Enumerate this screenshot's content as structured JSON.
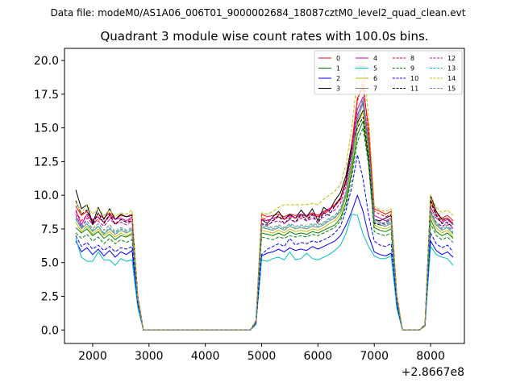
{
  "suptitle": "Data file: modeM0/AS1A06_006T01_9000002684_18087cztM0_level2_quad_clean.evt",
  "chart_data": {
    "type": "line",
    "title": "Quadrant 3 module wise count rates with 100.0s bins.",
    "xlabel": "",
    "ylabel": "",
    "x_offset_label": "+2.8667e8",
    "xlim": [
      1500,
      8600
    ],
    "ylim": [
      -1.0,
      20.9
    ],
    "x_ticks": [
      2000,
      3000,
      4000,
      5000,
      6000,
      7000,
      8000
    ],
    "x_tick_labels": [
      "2000",
      "3000",
      "4000",
      "5000",
      "6000",
      "7000",
      "8000"
    ],
    "y_ticks": [
      0.0,
      2.5,
      5.0,
      7.5,
      10.0,
      12.5,
      15.0,
      17.5,
      20.0
    ],
    "y_tick_labels": [
      "0.0",
      "2.5",
      "5.0",
      "7.5",
      "10.0",
      "12.5",
      "15.0",
      "17.5",
      "20.0"
    ],
    "legend_position": "upper right",
    "x": [
      1700,
      1800,
      1900,
      2000,
      2100,
      2200,
      2300,
      2400,
      2500,
      2600,
      2700,
      2800,
      2900,
      3000,
      3100,
      3200,
      3300,
      3400,
      3500,
      3600,
      3700,
      3800,
      3900,
      4000,
      4100,
      4200,
      4300,
      4400,
      4500,
      4600,
      4700,
      4800,
      4900,
      5000,
      5100,
      5200,
      5300,
      5400,
      5500,
      5600,
      5700,
      5800,
      5900,
      6000,
      6100,
      6200,
      6300,
      6400,
      6500,
      6600,
      6700,
      6800,
      6900,
      7000,
      7100,
      7200,
      7300,
      7400,
      7500,
      7600,
      7700,
      7800,
      7900,
      8000,
      8100,
      8200,
      8300,
      8400
    ],
    "series": [
      {
        "name": "0",
        "color": "#ff0000",
        "dash": "solid",
        "values": [
          9.2,
          8.5,
          8.8,
          8.1,
          8.6,
          8.3,
          8.7,
          8.2,
          8.5,
          8.4,
          8.6,
          2.6,
          0,
          0,
          0,
          0,
          0,
          0,
          0,
          0,
          0,
          0,
          0,
          0,
          0,
          0,
          0,
          0,
          0,
          0,
          0,
          0,
          0.7,
          8.6,
          8.4,
          8.5,
          8.6,
          8.4,
          8.6,
          8.5,
          8.6,
          8.5,
          8.7,
          8.5,
          8.8,
          9,
          9.3,
          9.8,
          11.2,
          13.8,
          17.2,
          18,
          15,
          9,
          8.8,
          8.6,
          8.8,
          2.6,
          0,
          0,
          0,
          0,
          0.4,
          9.7,
          8.6,
          8.3,
          8.5,
          8.1
        ]
      },
      {
        "name": "1",
        "color": "#008000",
        "dash": "solid",
        "values": [
          7.6,
          7.2,
          7.5,
          7,
          7.3,
          6.8,
          7.1,
          6.7,
          7,
          6.9,
          7.1,
          2.2,
          0,
          0,
          0,
          0,
          0,
          0,
          0,
          0,
          0,
          0,
          0,
          0,
          0,
          0,
          0,
          0,
          0,
          0,
          0,
          0,
          0.6,
          7.2,
          7.1,
          7,
          7.2,
          7,
          7.3,
          7.1,
          7.2,
          7.1,
          7.3,
          7.2,
          7.4,
          7.6,
          7.8,
          8.3,
          9.5,
          11.8,
          14.5,
          15.5,
          12.5,
          7.6,
          7.4,
          7.3,
          7.5,
          2.2,
          0,
          0,
          0,
          0,
          0.3,
          8.2,
          7.3,
          7,
          7.2,
          6.8
        ]
      },
      {
        "name": "2",
        "color": "#0000ff",
        "dash": "solid",
        "values": [
          6.6,
          5.8,
          6.1,
          5.6,
          6,
          5.5,
          5.9,
          5.4,
          5.8,
          5.6,
          5.9,
          1.9,
          0,
          0,
          0,
          0,
          0,
          0,
          0,
          0,
          0,
          0,
          0,
          0,
          0,
          0,
          0,
          0,
          0,
          0,
          0,
          0,
          0.5,
          5.5,
          5.7,
          5.8,
          6,
          5.8,
          6.1,
          5.9,
          6,
          5.9,
          6.2,
          6,
          6.2,
          6.4,
          6.6,
          7,
          7.8,
          8.8,
          10,
          8.8,
          7,
          5.8,
          5.6,
          5.5,
          5.7,
          1.8,
          0,
          0,
          0,
          0,
          0.3,
          6.6,
          5.9,
          5.6,
          5.8,
          5.4
        ]
      },
      {
        "name": "3",
        "color": "#000000",
        "dash": "solid",
        "values": [
          10.4,
          9,
          9.3,
          7.9,
          9.1,
          8.2,
          9,
          8.2,
          8.6,
          8.4,
          8.5,
          2.5,
          0,
          0,
          0,
          0,
          0,
          0,
          0,
          0,
          0,
          0,
          0,
          0,
          0,
          0,
          0,
          0,
          0,
          0,
          0,
          0,
          0.6,
          8.2,
          7.9,
          8.4,
          8.8,
          8.2,
          8.6,
          8.3,
          8.9,
          8.4,
          9,
          8.1,
          9.1,
          8.8,
          9.6,
          10.2,
          11.5,
          13.8,
          15.4,
          16.3,
          13.2,
          8.2,
          8.1,
          8.3,
          8.5,
          2.4,
          0,
          0,
          0,
          0,
          0.3,
          10,
          8.8,
          8.2,
          8.3,
          7.9
        ]
      },
      {
        "name": "4",
        "color": "#bf00bf",
        "dash": "solid",
        "values": [
          8.9,
          7.8,
          8.6,
          8.2,
          8.4,
          8,
          8.5,
          8.2,
          8.3,
          8.1,
          8.4,
          2.4,
          0,
          0,
          0,
          0,
          0,
          0,
          0,
          0,
          0,
          0,
          0,
          0,
          0,
          0,
          0,
          0,
          0,
          0,
          0,
          0,
          0.6,
          8.2,
          8.1,
          8.3,
          8.4,
          8.2,
          8.5,
          8.3,
          8.6,
          8.4,
          8.6,
          8.4,
          8.7,
          9,
          9.2,
          9.7,
          11,
          13.5,
          16.4,
          17.3,
          14,
          8.5,
          8.3,
          8.1,
          8.3,
          2.4,
          0,
          0,
          0,
          0,
          0.4,
          9.1,
          8.3,
          8,
          8.2,
          7.8
        ]
      },
      {
        "name": "5",
        "color": "#00bfbf",
        "dash": "solid",
        "values": [
          6.8,
          5.4,
          5.1,
          5.1,
          5.8,
          5.2,
          5.2,
          4.8,
          5.3,
          5.1,
          5.2,
          1.7,
          0,
          0,
          0,
          0,
          0,
          0,
          0,
          0,
          0,
          0,
          0,
          0,
          0,
          0,
          0,
          0,
          0,
          0,
          0,
          0,
          0.4,
          5.2,
          5.1,
          5.3,
          5.4,
          5.2,
          5.8,
          5.2,
          5.3,
          5.7,
          5.3,
          5.2,
          5.4,
          5.6,
          5.9,
          6.3,
          7.2,
          8.6,
          8.5,
          7.1,
          6.2,
          5.5,
          5.3,
          5.3,
          5.5,
          1.6,
          0,
          0,
          0,
          0,
          0.3,
          6.2,
          5.6,
          5.4,
          5.3,
          4.8
        ]
      },
      {
        "name": "6",
        "color": "#bfbf00",
        "dash": "solid",
        "values": [
          8,
          7.3,
          7.7,
          7.1,
          7.5,
          7,
          7.3,
          6.9,
          7.2,
          7,
          7.2,
          2.2,
          0,
          0,
          0,
          0,
          0,
          0,
          0,
          0,
          0,
          0,
          0,
          0,
          0,
          0,
          0,
          0,
          0,
          0,
          0,
          0,
          0.6,
          7.4,
          7.3,
          7.2,
          7.4,
          7.2,
          7.5,
          7.3,
          7.4,
          7.3,
          7.5,
          7.4,
          7.6,
          7.9,
          8.1,
          8.6,
          9.9,
          12.2,
          15.2,
          16.2,
          13,
          7.8,
          7.6,
          7.5,
          7.7,
          2.2,
          0,
          0,
          0,
          0,
          0.3,
          8.5,
          7.6,
          7.2,
          7.4,
          6.9
        ]
      },
      {
        "name": "7",
        "color": "#808080",
        "dash": "solid",
        "values": [
          8.3,
          7.5,
          7.9,
          7.3,
          7.7,
          7.1,
          7.5,
          7.1,
          7.4,
          7.2,
          7.4,
          2.3,
          0,
          0,
          0,
          0,
          0,
          0,
          0,
          0,
          0,
          0,
          0,
          0,
          0,
          0,
          0,
          0,
          0,
          0,
          0,
          0,
          0.6,
          7.6,
          7.5,
          7.4,
          7.6,
          7.4,
          7.7,
          7.5,
          7.6,
          7.5,
          7.7,
          7.6,
          7.8,
          8.1,
          8.3,
          8.8,
          10.1,
          12.5,
          15.6,
          16.8,
          13.4,
          8,
          7.8,
          7.7,
          7.9,
          2.3,
          0,
          0,
          0,
          0,
          0.3,
          8.7,
          7.8,
          7.4,
          7.6,
          7.1
        ]
      },
      {
        "name": "8",
        "color": "#ff0000",
        "dash": "dashed",
        "values": [
          8.8,
          8.1,
          8.5,
          7.8,
          8.3,
          8,
          8.4,
          7.9,
          8.2,
          8,
          8.3,
          2.5,
          0,
          0,
          0,
          0,
          0,
          0,
          0,
          0,
          0,
          0,
          0,
          0,
          0,
          0,
          0,
          0,
          0,
          0,
          0,
          0,
          0.7,
          8.3,
          8.2,
          8.1,
          8.4,
          8.2,
          8.4,
          8.3,
          8.4,
          8.3,
          8.5,
          8.4,
          8.6,
          8.9,
          9.2,
          9.7,
          11,
          13.6,
          17,
          18.5,
          14.5,
          8.8,
          8.6,
          8.4,
          8.6,
          2.5,
          0,
          0,
          0,
          0,
          0.4,
          9.4,
          8.5,
          8.1,
          8.3,
          7.9
        ]
      },
      {
        "name": "9",
        "color": "#008000",
        "dash": "dashed",
        "values": [
          7.2,
          6.8,
          7.1,
          6.6,
          6.9,
          6.4,
          6.8,
          6.4,
          6.7,
          6.5,
          6.7,
          2.1,
          0,
          0,
          0,
          0,
          0,
          0,
          0,
          0,
          0,
          0,
          0,
          0,
          0,
          0,
          0,
          0,
          0,
          0,
          0,
          0,
          0.5,
          6.9,
          6.8,
          6.7,
          6.9,
          6.8,
          7,
          6.9,
          7,
          6.9,
          7.1,
          7,
          7.2,
          7.4,
          7.6,
          8.1,
          9.2,
          11.4,
          14,
          15,
          12.2,
          7.3,
          7.1,
          7,
          7.2,
          2.1,
          0,
          0,
          0,
          0,
          0.3,
          7.9,
          7,
          6.7,
          6.9,
          6.5
        ]
      },
      {
        "name": "10",
        "color": "#0000ff",
        "dash": "dashed",
        "values": [
          7,
          6.2,
          6.5,
          6,
          6.3,
          5.9,
          6.2,
          5.8,
          6.1,
          6,
          6.2,
          2,
          0,
          0,
          0,
          0,
          0,
          0,
          0,
          0,
          0,
          0,
          0,
          0,
          0,
          0,
          0,
          0,
          0,
          0,
          0,
          0,
          0.5,
          5.6,
          6,
          6.2,
          6.4,
          6.2,
          6.8,
          6.3,
          6.5,
          6.4,
          6.6,
          6.5,
          6.7,
          6.9,
          7.2,
          7.7,
          8.9,
          10.6,
          13,
          11.2,
          8.5,
          6.6,
          6.3,
          6.2,
          6.4,
          1.9,
          0,
          0,
          0,
          0,
          0.3,
          7.2,
          6.4,
          6.1,
          6.3,
          5.8
        ]
      },
      {
        "name": "11",
        "color": "#000000",
        "dash": "dashed",
        "values": [
          9.6,
          8.6,
          8.9,
          7.8,
          8.7,
          7.9,
          8.6,
          7.8,
          8.2,
          8,
          8.1,
          2.4,
          0,
          0,
          0,
          0,
          0,
          0,
          0,
          0,
          0,
          0,
          0,
          0,
          0,
          0,
          0,
          0,
          0,
          0,
          0,
          0,
          0.6,
          7.9,
          7.7,
          8.1,
          8.5,
          7.9,
          8.3,
          8,
          8.6,
          8.1,
          8.6,
          7.9,
          8.7,
          8.5,
          9.2,
          9.8,
          11.1,
          13.3,
          15,
          15.8,
          12.8,
          7.9,
          7.8,
          8,
          8.2,
          2.3,
          0,
          0,
          0,
          0,
          0.3,
          9.6,
          8.5,
          7.9,
          8,
          7.6
        ]
      },
      {
        "name": "12",
        "color": "#bf00bf",
        "dash": "dashed",
        "values": [
          8.6,
          7.6,
          8.3,
          7.9,
          8.1,
          7.7,
          8.2,
          7.9,
          8,
          7.8,
          8.1,
          2.4,
          0,
          0,
          0,
          0,
          0,
          0,
          0,
          0,
          0,
          0,
          0,
          0,
          0,
          0,
          0,
          0,
          0,
          0,
          0,
          0,
          0.6,
          7.9,
          7.8,
          8,
          8.1,
          7.9,
          8.2,
          8,
          8.3,
          8.1,
          8.3,
          8.1,
          8.4,
          8.7,
          8.9,
          9.4,
          10.7,
          13.1,
          16,
          16.9,
          13.6,
          8.2,
          8,
          7.8,
          8,
          2.3,
          0,
          0,
          0,
          0,
          0.4,
          8.8,
          8,
          7.7,
          7.9,
          7.5
        ]
      },
      {
        "name": "13",
        "color": "#00bfbf",
        "dash": "dashed",
        "values": [
          8.2,
          7.6,
          7.9,
          7.4,
          7.7,
          7.2,
          7.6,
          7.2,
          7.5,
          7.3,
          7.5,
          2.3,
          0,
          0,
          0,
          0,
          0,
          0,
          0,
          0,
          0,
          0,
          0,
          0,
          0,
          0,
          0,
          0,
          0,
          0,
          0,
          0,
          0.6,
          7.7,
          7.6,
          7.5,
          7.7,
          7.5,
          7.8,
          7.6,
          7.7,
          7.6,
          7.8,
          7.7,
          7.9,
          8.2,
          8.4,
          8.9,
          10.2,
          12.7,
          15.8,
          17,
          13.6,
          8.1,
          7.9,
          7.8,
          8,
          2.3,
          0,
          0,
          0,
          0,
          0.3,
          8.8,
          7.9,
          7.5,
          7.7,
          7.2
        ]
      },
      {
        "name": "14",
        "color": "#bfbf00",
        "dash": "dashed",
        "values": [
          9.5,
          8.7,
          9.3,
          8.6,
          9,
          8.5,
          8.9,
          8.4,
          8.7,
          8.6,
          8.9,
          2.6,
          0,
          0,
          0,
          0,
          0,
          0,
          0,
          0,
          0,
          0,
          0,
          0,
          0,
          0,
          0,
          0,
          0,
          0,
          0,
          0,
          0.7,
          8.7,
          8.6,
          8.8,
          9.1,
          9.3,
          9.3,
          9.3,
          9.3,
          9.3,
          9.4,
          9.3,
          9.7,
          10,
          10.3,
          10.8,
          12.3,
          15,
          18.8,
          20,
          15.8,
          9.2,
          8.9,
          8.8,
          9,
          2.6,
          0,
          0,
          0,
          0,
          0.4,
          10,
          9.1,
          8.7,
          8.9,
          8.5
        ]
      },
      {
        "name": "15",
        "color": "#808080",
        "dash": "dashed",
        "values": [
          8.4,
          7.7,
          8.1,
          7.5,
          7.9,
          7.4,
          7.8,
          7.3,
          7.6,
          7.4,
          7.6,
          2.3,
          0,
          0,
          0,
          0,
          0,
          0,
          0,
          0,
          0,
          0,
          0,
          0,
          0,
          0,
          0,
          0,
          0,
          0,
          0,
          0,
          0.6,
          7.8,
          7.7,
          7.6,
          7.8,
          7.6,
          7.9,
          7.7,
          7.8,
          7.7,
          7.9,
          7.8,
          8,
          8.3,
          8.5,
          9,
          10.3,
          12.8,
          15.9,
          17.2,
          13.8,
          8.2,
          8,
          7.9,
          8.1,
          2.3,
          0,
          0,
          0,
          0,
          0.3,
          8.9,
          8,
          7.6,
          7.8,
          7.3
        ]
      }
    ]
  }
}
